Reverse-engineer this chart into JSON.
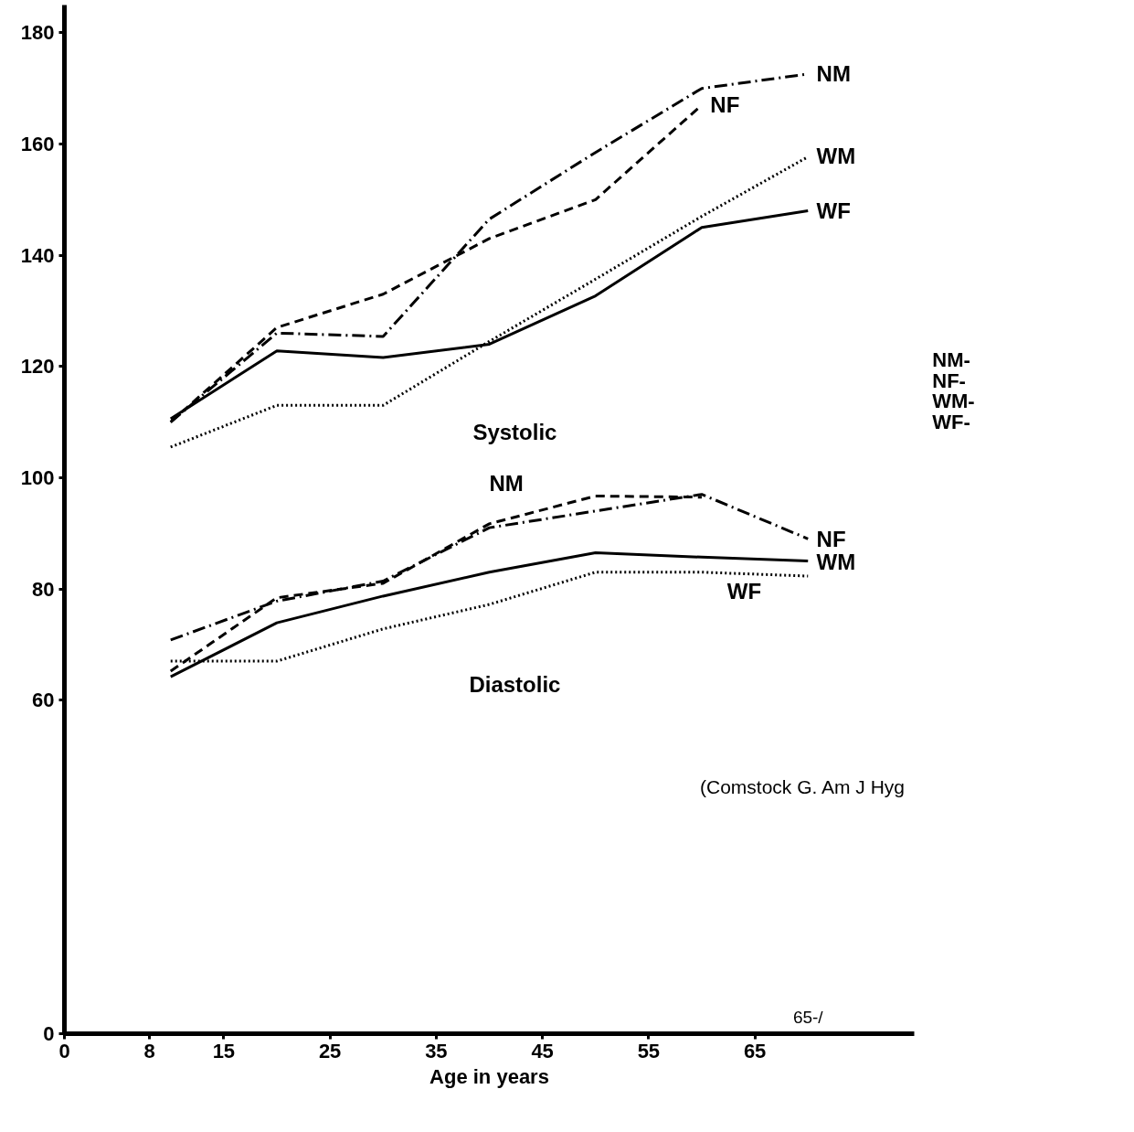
{
  "chart_data": {
    "type": "line",
    "xlabel": "Age in years",
    "x": [
      10,
      20,
      30,
      40,
      50,
      60,
      70
    ],
    "xlim": [
      0,
      80
    ],
    "xticks": [
      0,
      8,
      15,
      25,
      35,
      45,
      55,
      65
    ],
    "ylim": [
      0,
      185
    ],
    "yticks": [
      0,
      60,
      80,
      100,
      120,
      140,
      160,
      180
    ],
    "grid": false,
    "marker": "none",
    "series": [
      {
        "color": "#000000",
        "line_style": "dashdot",
        "values": [
          110,
          126,
          125.4,
          146.5,
          158.5,
          170,
          172.6
        ]
      },
      {
        "color": "#000000",
        "line_style": "dashed",
        "values": [
          110,
          127,
          133,
          143,
          150,
          167,
          null
        ]
      },
      {
        "color": "#000000",
        "line_style": "dotted",
        "values": [
          105.5,
          113,
          113,
          124.5,
          135.7,
          147,
          157.7
        ]
      },
      {
        "color": "#000000",
        "line_style": "solid",
        "values": [
          110.6,
          122.8,
          121.6,
          124,
          132.7,
          145,
          148
        ]
      },
      {
        "color": "#000000",
        "line_style": "dashdot",
        "values": [
          70.8,
          77.8,
          81.4,
          91,
          94,
          97,
          89
        ]
      },
      {
        "color": "#000000",
        "line_style": "dashed",
        "values": [
          65.2,
          78.4,
          81,
          91.7,
          96.7,
          96.5,
          null
        ]
      },
      {
        "color": "#000000",
        "line_style": "solid",
        "values": [
          64.2,
          73.9,
          78.7,
          83,
          86.5,
          85.7,
          85
        ]
      },
      {
        "color": "#000000",
        "line_style": "dotted",
        "values": [
          67,
          67,
          72.8,
          77.2,
          83,
          83,
          82.3
        ]
      }
    ],
    "annotations": [
      "NM",
      "NF",
      "WM",
      "WF",
      "NF",
      "WM",
      "Systolic",
      "NM",
      "WF",
      "Diastolic",
      "NM-",
      "NF-",
      "WM-",
      "WF-",
      "(Comstock G. Am J Hyg",
      "65-/"
    ]
  }
}
